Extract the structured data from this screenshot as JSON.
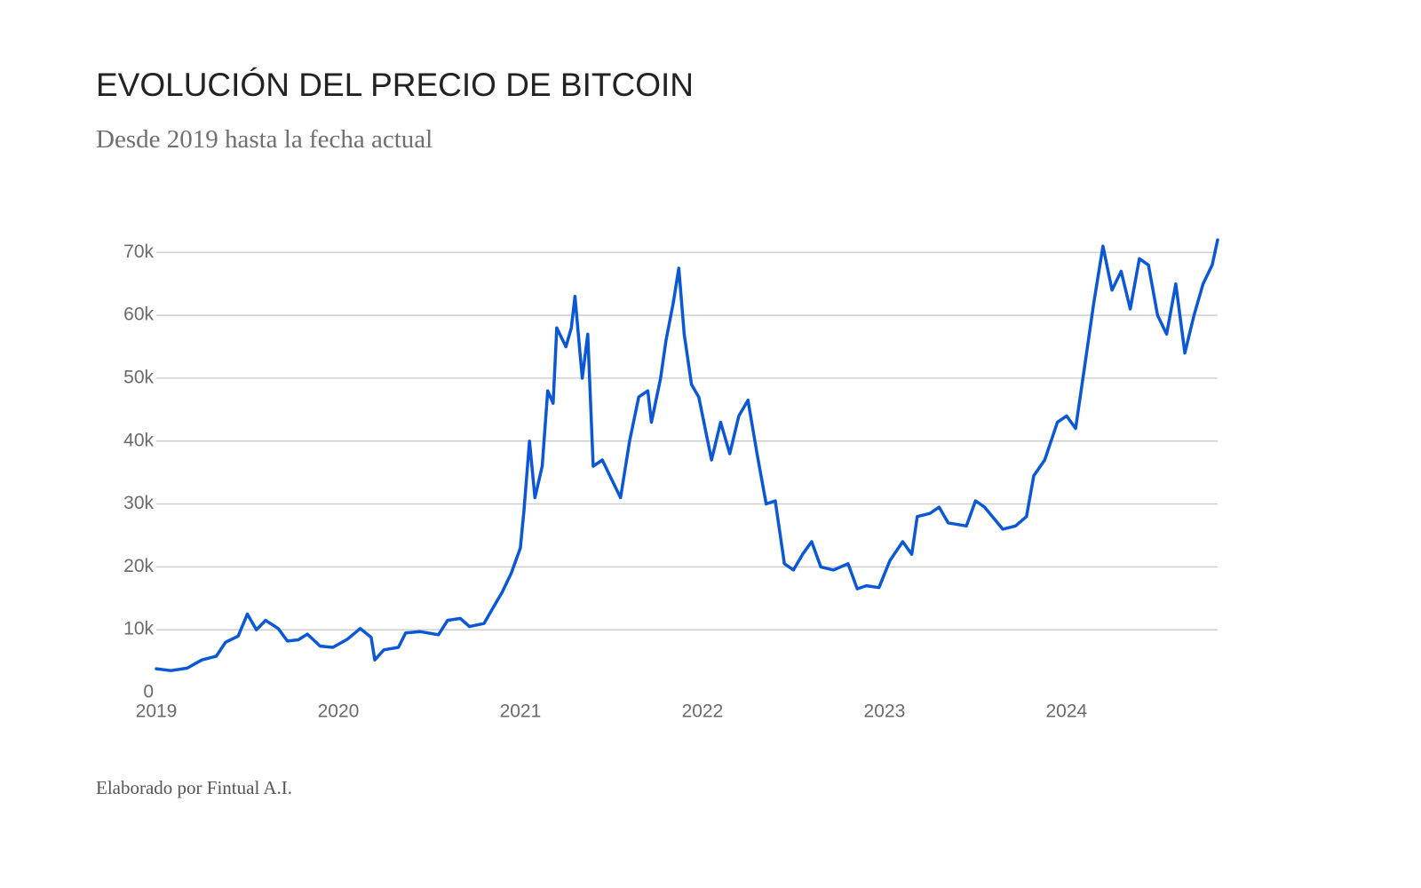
{
  "chart_data": {
    "type": "line",
    "title": "EVOLUCIÓN DEL PRECIO DE BITCOIN",
    "subtitle": "Desde 2019 hasta la fecha actual",
    "footer": "Elaborado por Fintual A.I.",
    "color": "#0a58d6",
    "grid": true,
    "xlim": [
      2019,
      2024.83
    ],
    "xticks": [
      2019,
      2020,
      2021,
      2022,
      2023,
      2024
    ],
    "ylim": [
      0,
      73000
    ],
    "yticks": [
      0,
      {
        "value": 10000,
        "label": "10k"
      },
      {
        "value": 20000,
        "label": "20k"
      },
      {
        "value": 30000,
        "label": "30k"
      },
      {
        "value": 40000,
        "label": "40k"
      },
      {
        "value": 50000,
        "label": "50k"
      },
      {
        "value": 60000,
        "label": "60k"
      },
      {
        "value": 70000,
        "label": "70k"
      }
    ],
    "x": [
      2019.0,
      2019.08,
      2019.17,
      2019.25,
      2019.33,
      2019.38,
      2019.45,
      2019.5,
      2019.55,
      2019.6,
      2019.67,
      2019.72,
      2019.78,
      2019.83,
      2019.9,
      2019.97,
      2020.05,
      2020.12,
      2020.18,
      2020.2,
      2020.25,
      2020.33,
      2020.37,
      2020.45,
      2020.55,
      2020.6,
      2020.67,
      2020.72,
      2020.8,
      2020.85,
      2020.9,
      2020.95,
      2021.0,
      2021.02,
      2021.05,
      2021.08,
      2021.12,
      2021.15,
      2021.18,
      2021.2,
      2021.25,
      2021.28,
      2021.3,
      2021.34,
      2021.37,
      2021.4,
      2021.45,
      2021.5,
      2021.55,
      2021.6,
      2021.65,
      2021.7,
      2021.72,
      2021.77,
      2021.8,
      2021.84,
      2021.87,
      2021.9,
      2021.94,
      2021.98,
      2022.05,
      2022.1,
      2022.15,
      2022.2,
      2022.25,
      2022.3,
      2022.35,
      2022.4,
      2022.45,
      2022.5,
      2022.55,
      2022.6,
      2022.65,
      2022.72,
      2022.8,
      2022.85,
      2022.9,
      2022.97,
      2023.03,
      2023.1,
      2023.15,
      2023.18,
      2023.25,
      2023.3,
      2023.35,
      2023.45,
      2023.5,
      2023.55,
      2023.65,
      2023.72,
      2023.78,
      2023.82,
      2023.88,
      2023.95,
      2024.0,
      2024.05,
      2024.1,
      2024.15,
      2024.2,
      2024.25,
      2024.3,
      2024.35,
      2024.4,
      2024.45,
      2024.5,
      2024.55,
      2024.6,
      2024.65,
      2024.7,
      2024.75,
      2024.8,
      2024.83
    ],
    "values": [
      3800,
      3500,
      3900,
      5200,
      5800,
      8000,
      9000,
      12500,
      10000,
      11500,
      10200,
      8200,
      8400,
      9300,
      7400,
      7200,
      8500,
      10200,
      8800,
      5200,
      6800,
      7200,
      9500,
      9700,
      9200,
      11500,
      11800,
      10500,
      11000,
      13500,
      16000,
      19000,
      23000,
      29000,
      40000,
      31000,
      36000,
      48000,
      46000,
      58000,
      55000,
      58000,
      63000,
      50000,
      57000,
      36000,
      37000,
      34000,
      31000,
      40000,
      47000,
      48000,
      43000,
      50000,
      56000,
      62000,
      67500,
      57000,
      49000,
      47000,
      37000,
      43000,
      38000,
      44000,
      46500,
      38000,
      30000,
      30500,
      20500,
      19500,
      22000,
      24000,
      20000,
      19500,
      20500,
      16500,
      17000,
      16700,
      21000,
      24000,
      22000,
      28000,
      28500,
      29500,
      27000,
      26500,
      30500,
      29500,
      26000,
      26500,
      28000,
      34500,
      37000,
      43000,
      44000,
      42000,
      52000,
      62000,
      71000,
      64000,
      67000,
      61000,
      69000,
      68000,
      60000,
      57000,
      65000,
      54000,
      60000,
      65000,
      68000,
      72000
    ]
  }
}
